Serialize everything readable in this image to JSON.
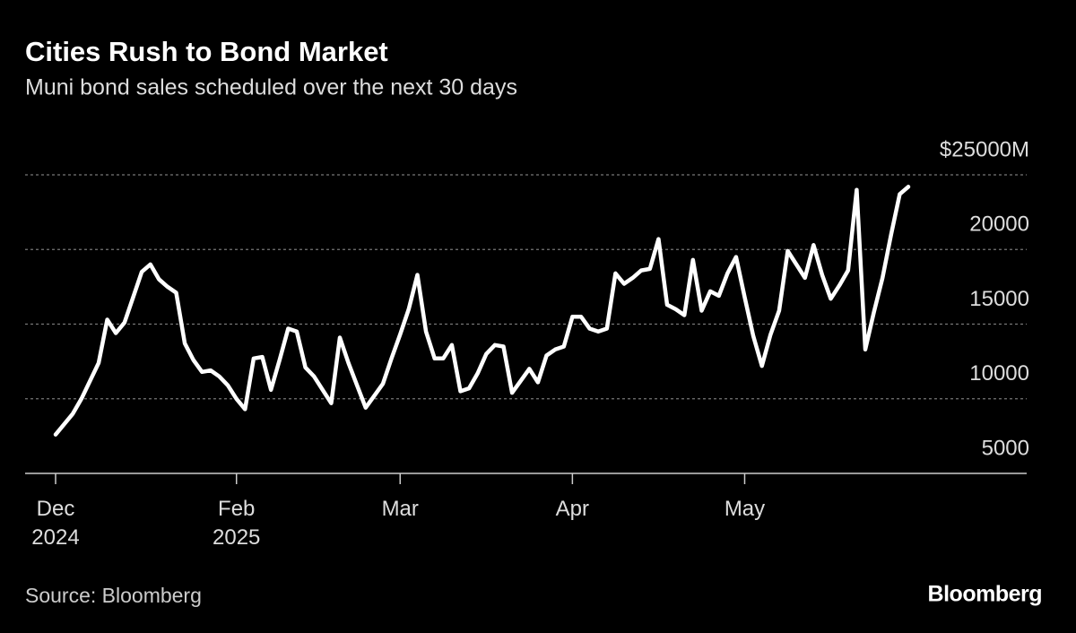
{
  "chart_data": {
    "type": "line",
    "title": "Cities Rush to Bond Market",
    "subtitle": "Muni bond sales scheduled over the next 30 days",
    "source": "Source: Bloomberg",
    "brand": "Bloomberg",
    "categories": [
      "Dec\n2024",
      null,
      null,
      null,
      null,
      null,
      null,
      null,
      null,
      null,
      null,
      null,
      null,
      null,
      null,
      null,
      null,
      null,
      null,
      null,
      null,
      "Feb\n2025",
      null,
      null,
      null,
      null,
      null,
      null,
      null,
      null,
      null,
      null,
      null,
      null,
      null,
      null,
      null,
      null,
      null,
      null,
      "Mar",
      null,
      null,
      null,
      null,
      null,
      null,
      null,
      null,
      null,
      null,
      null,
      null,
      null,
      null,
      null,
      null,
      null,
      null,
      null,
      "Apr",
      null,
      null,
      null,
      null,
      null,
      null,
      null,
      null,
      null,
      null,
      null,
      null,
      null,
      null,
      null,
      null,
      null,
      null,
      null,
      "May",
      null,
      null,
      null,
      null,
      null,
      null,
      null,
      null,
      null,
      null,
      null,
      null,
      null,
      null,
      null,
      null,
      null,
      null,
      null
    ],
    "series": [
      {
        "name": "Muni bond sales",
        "color": "#ffffff",
        "values": [
          7600,
          8300,
          9000,
          10000,
          11200,
          12400,
          15300,
          14400,
          15100,
          16800,
          18500,
          19000,
          18000,
          17500,
          17100,
          13700,
          12600,
          11800,
          11900,
          11500,
          10900,
          10000,
          9300,
          12700,
          12800,
          10600,
          12600,
          14700,
          14500,
          12100,
          11500,
          10600,
          9700,
          14100,
          12400,
          10900,
          9400,
          10200,
          11000,
          12700,
          14300,
          16000,
          18300,
          14500,
          12700,
          12700,
          13600,
          10500,
          10700,
          11700,
          13000,
          13600,
          13500,
          10400,
          11200,
          12000,
          11100,
          12900,
          13300,
          13500,
          15500,
          15500,
          14700,
          14500,
          14700,
          18400,
          17700,
          18100,
          18600,
          18700,
          20700,
          16300,
          16000,
          15600,
          19300,
          15900,
          17200,
          16900,
          18400,
          19500,
          16800,
          14200,
          12200,
          14300,
          15900,
          19900,
          19000,
          18100,
          20300,
          18300,
          16700,
          17600,
          18600,
          24000,
          13300,
          15800,
          18100,
          21000,
          23700,
          24200
        ]
      }
    ],
    "ylim": [
      5000,
      25000
    ],
    "yticks": [
      5000,
      10000,
      15000,
      20000,
      {
        "value": 25000,
        "label": "$25000M"
      }
    ],
    "grid": true
  }
}
